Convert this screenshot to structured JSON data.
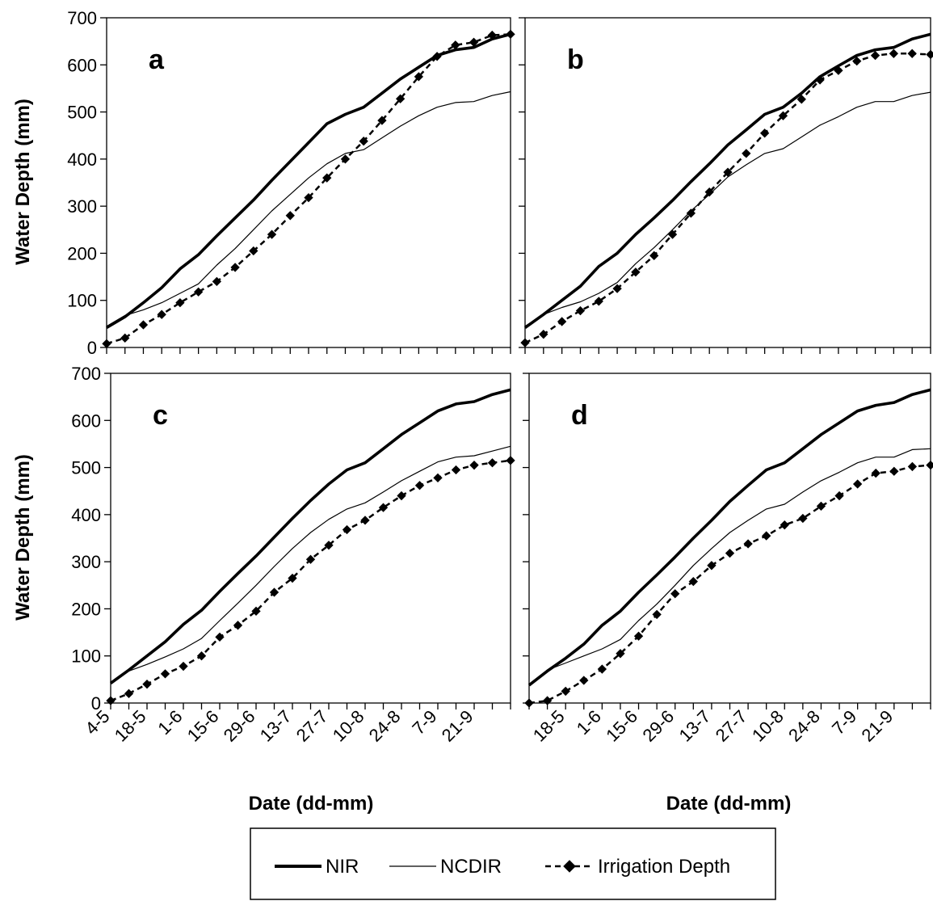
{
  "shared": {
    "ylabel": "Water Depth (mm)",
    "xlabel": "Date (dd-mm)",
    "y_ticks": [
      0,
      100,
      200,
      300,
      400,
      500,
      600,
      700
    ],
    "x_tick_labels_left": [
      "4-5",
      "18-5",
      "1-6",
      "15-6",
      "29-6",
      "13-7",
      "27-7",
      "10-8",
      "24-8",
      "7-9",
      "21-9"
    ],
    "x_tick_labels_right": [
      "18-5",
      "1-6",
      "15-6",
      "29-6",
      "13-7",
      "27-7",
      "10-8",
      "24-8",
      "7-9",
      "21-9"
    ]
  },
  "legend": {
    "items": [
      {
        "label": "NIR",
        "style": "thick-solid"
      },
      {
        "label": "NCDIR",
        "style": "thin-solid"
      },
      {
        "label": "Irrigation Depth",
        "style": "dashed-diamond"
      }
    ]
  },
  "chart_data": [
    {
      "panel": "a",
      "type": "line",
      "ylim": [
        0,
        700
      ],
      "series": [
        {
          "name": "NIR",
          "values": [
            42,
            65,
            95,
            127,
            167,
            197,
            237,
            275,
            313,
            355,
            395,
            435,
            475,
            495,
            510,
            540,
            570,
            595,
            620,
            632,
            637,
            655,
            665
          ]
        },
        {
          "name": "NCDIR",
          "values": [
            45,
            68,
            80,
            95,
            115,
            135,
            175,
            210,
            250,
            290,
            325,
            360,
            390,
            412,
            420,
            445,
            470,
            492,
            510,
            520,
            522,
            535,
            543
          ]
        },
        {
          "name": "Irrigation Depth",
          "values": [
            8,
            20,
            48,
            70,
            95,
            118,
            140,
            170,
            205,
            240,
            280,
            318,
            360,
            400,
            438,
            482,
            528,
            575,
            618,
            642,
            648,
            663,
            665
          ]
        }
      ]
    },
    {
      "panel": "b",
      "type": "line",
      "ylim": [
        0,
        700
      ],
      "series": [
        {
          "name": "NIR",
          "values": [
            42,
            70,
            100,
            130,
            172,
            200,
            240,
            275,
            312,
            352,
            390,
            430,
            462,
            495,
            510,
            540,
            575,
            598,
            620,
            632,
            637,
            655,
            665
          ]
        },
        {
          "name": "NCDIR",
          "values": [
            45,
            70,
            85,
            97,
            115,
            138,
            178,
            212,
            250,
            290,
            325,
            362,
            388,
            412,
            422,
            447,
            472,
            490,
            510,
            522,
            522,
            535,
            542
          ]
        },
        {
          "name": "Irrigation Depth",
          "values": [
            10,
            28,
            55,
            78,
            98,
            125,
            160,
            195,
            240,
            285,
            330,
            372,
            412,
            455,
            492,
            527,
            568,
            588,
            608,
            620,
            624,
            624,
            622
          ]
        }
      ]
    },
    {
      "panel": "c",
      "type": "line",
      "ylim": [
        0,
        700
      ],
      "series": [
        {
          "name": "NIR",
          "values": [
            42,
            70,
            100,
            130,
            167,
            197,
            237,
            275,
            312,
            352,
            392,
            430,
            465,
            495,
            510,
            540,
            570,
            595,
            620,
            635,
            640,
            655,
            665
          ]
        },
        {
          "name": "NCDIR",
          "values": [
            42,
            68,
            82,
            98,
            115,
            137,
            175,
            212,
            250,
            290,
            328,
            362,
            390,
            412,
            425,
            448,
            472,
            492,
            512,
            522,
            525,
            535,
            545
          ]
        },
        {
          "name": "Irrigation Depth",
          "values": [
            5,
            20,
            40,
            62,
            78,
            100,
            140,
            165,
            195,
            235,
            265,
            305,
            335,
            368,
            388,
            415,
            440,
            462,
            478,
            495,
            505,
            510,
            515
          ]
        }
      ]
    },
    {
      "panel": "d",
      "type": "line",
      "ylim": [
        0,
        700
      ],
      "series": [
        {
          "name": "NIR",
          "values": [
            38,
            68,
            95,
            125,
            165,
            195,
            235,
            272,
            310,
            350,
            388,
            428,
            462,
            495,
            510,
            540,
            570,
            595,
            620,
            632,
            638,
            655,
            665
          ]
        },
        {
          "name": "NCDIR",
          "values": [
            40,
            70,
            85,
            100,
            115,
            135,
            175,
            210,
            250,
            292,
            328,
            362,
            388,
            412,
            422,
            448,
            472,
            490,
            510,
            522,
            522,
            538,
            540
          ]
        },
        {
          "name": "Irrigation Depth",
          "values": [
            0,
            5,
            25,
            48,
            72,
            105,
            142,
            188,
            232,
            258,
            292,
            318,
            338,
            355,
            378,
            392,
            418,
            440,
            465,
            488,
            492,
            502,
            505
          ]
        }
      ]
    }
  ]
}
